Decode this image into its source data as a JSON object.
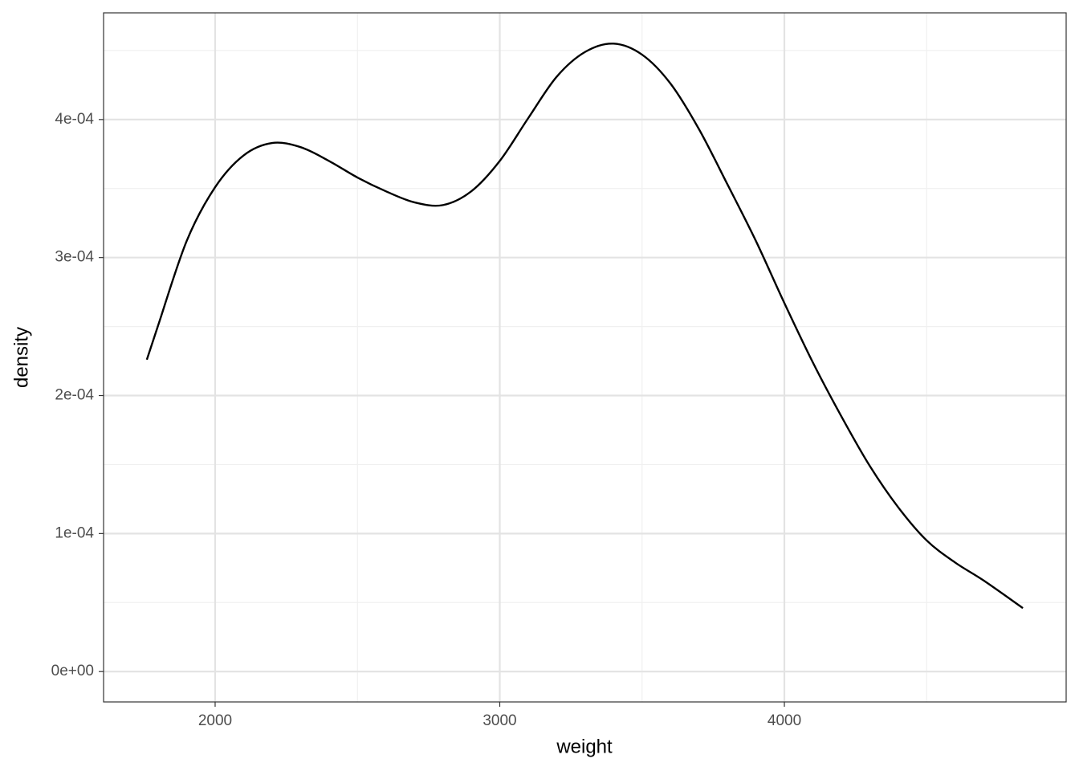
{
  "chart_data": {
    "type": "line",
    "x_label": "weight",
    "y_label": "density",
    "x": [
      1760,
      1800,
      1900,
      2000,
      2100,
      2200,
      2300,
      2400,
      2500,
      2600,
      2700,
      2800,
      2900,
      3000,
      3100,
      3200,
      3300,
      3400,
      3500,
      3600,
      3700,
      3800,
      3900,
      4000,
      4100,
      4200,
      4300,
      4400,
      4500,
      4600,
      4700,
      4838
    ],
    "values": [
      0.000226,
      0.000251,
      0.000312,
      0.000351,
      0.000374,
      0.000383,
      0.00038,
      0.00037,
      0.000358,
      0.000348,
      0.00034,
      0.000338,
      0.000348,
      0.00037,
      0.000401,
      0.000431,
      0.000449,
      0.000455,
      0.000447,
      0.000426,
      0.000393,
      0.000353,
      0.000312,
      0.000267,
      0.000224,
      0.000185,
      0.000149,
      0.000119,
      9.5e-05,
      7.9e-05,
      6.6e-05,
      4.6e-05
    ],
    "color": "#000000",
    "xlim": [
      1608,
      4990
    ],
    "xticks": [
      2000,
      3000,
      4000
    ],
    "xminorticks": [
      2500,
      3500,
      4500
    ],
    "ylim": [
      -2.2e-05,
      0.0004773
    ],
    "yticks": [
      {
        "value": 0,
        "label": "0e+00"
      },
      {
        "value": 0.0001,
        "label": "1e-04"
      },
      {
        "value": 0.0002,
        "label": "2e-04"
      },
      {
        "value": 0.0003,
        "label": "3e-04"
      },
      {
        "value": 0.0004,
        "label": "4e-04"
      }
    ],
    "yminorticks": [
      5e-05,
      0.00015,
      0.00025,
      0.00035,
      0.00045
    ],
    "grid": true
  }
}
